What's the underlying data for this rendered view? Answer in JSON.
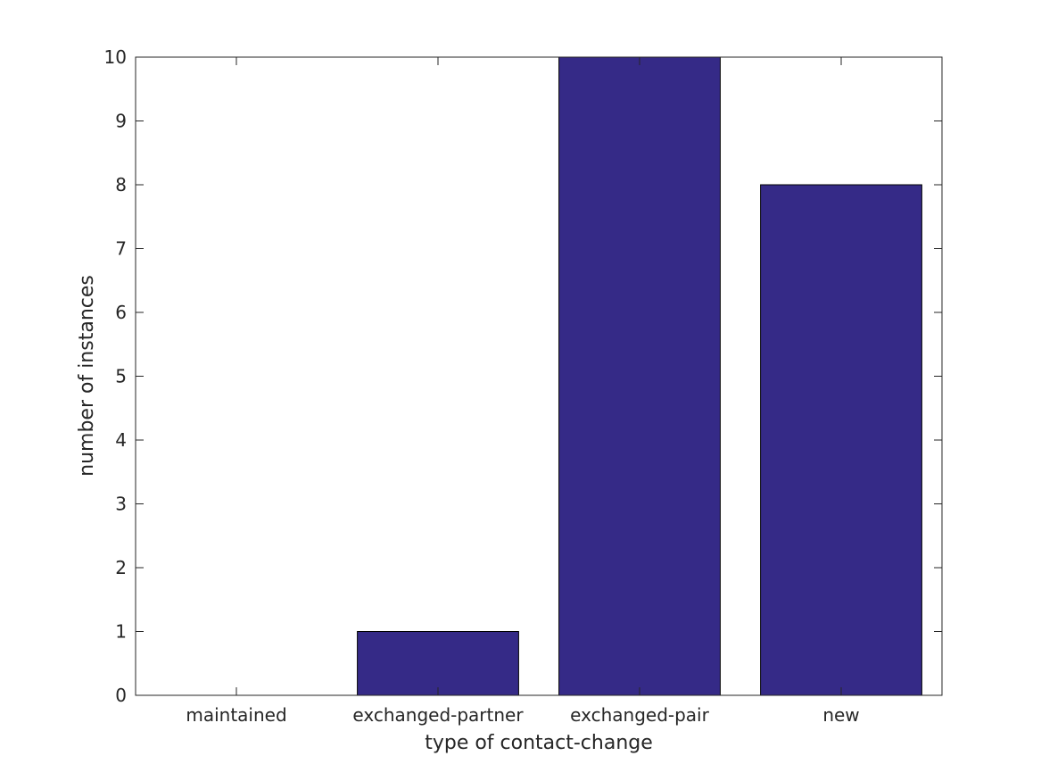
{
  "chart_data": {
    "type": "bar",
    "categories": [
      "maintained",
      "exchanged-partner",
      "exchanged-pair",
      "new"
    ],
    "values": [
      0,
      1,
      10,
      8
    ],
    "xlabel": "type of contact-change",
    "ylabel": "number of instances",
    "ylim": [
      0,
      10
    ],
    "yticks": [
      "0",
      "1",
      "2",
      "3",
      "4",
      "5",
      "6",
      "7",
      "8",
      "9",
      "10"
    ],
    "grid": false,
    "legend": "none",
    "bar_color": "#352a87",
    "bar_edge_color": "#000000",
    "axis_color": "#262626"
  }
}
